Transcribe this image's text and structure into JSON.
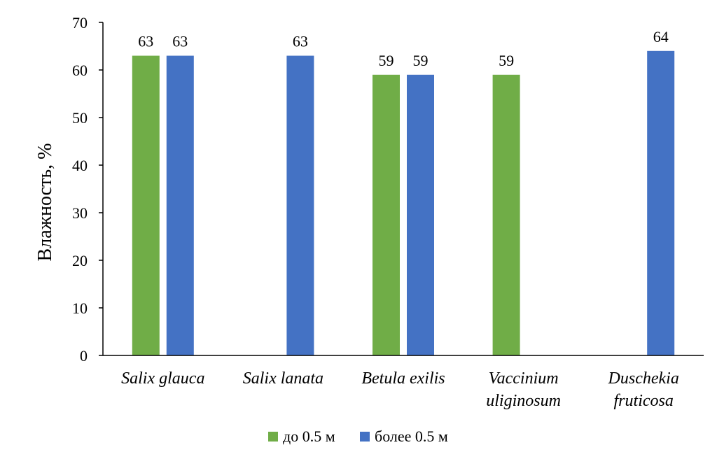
{
  "chart_data": {
    "type": "bar",
    "categories": [
      [
        "Salix glauca"
      ],
      [
        "Salix lanata"
      ],
      [
        "Betula exilis"
      ],
      [
        "Vaccinium",
        "uliginosum"
      ],
      [
        "Duschekia",
        "fruticosa"
      ]
    ],
    "series": [
      {
        "name": "до 0.5 м",
        "color": "#70AD47",
        "values": [
          63,
          null,
          59,
          59,
          null
        ]
      },
      {
        "name": "более 0.5 м",
        "color": "#4472C4",
        "values": [
          63,
          63,
          59,
          null,
          64
        ]
      }
    ],
    "ylabel": "Влажность, %",
    "xlabel": "",
    "ylim": [
      0,
      70
    ],
    "yticks": [
      0,
      10,
      20,
      30,
      40,
      50,
      60,
      70
    ],
    "grid": false,
    "legend_position": "bottom",
    "data_labels": true
  }
}
